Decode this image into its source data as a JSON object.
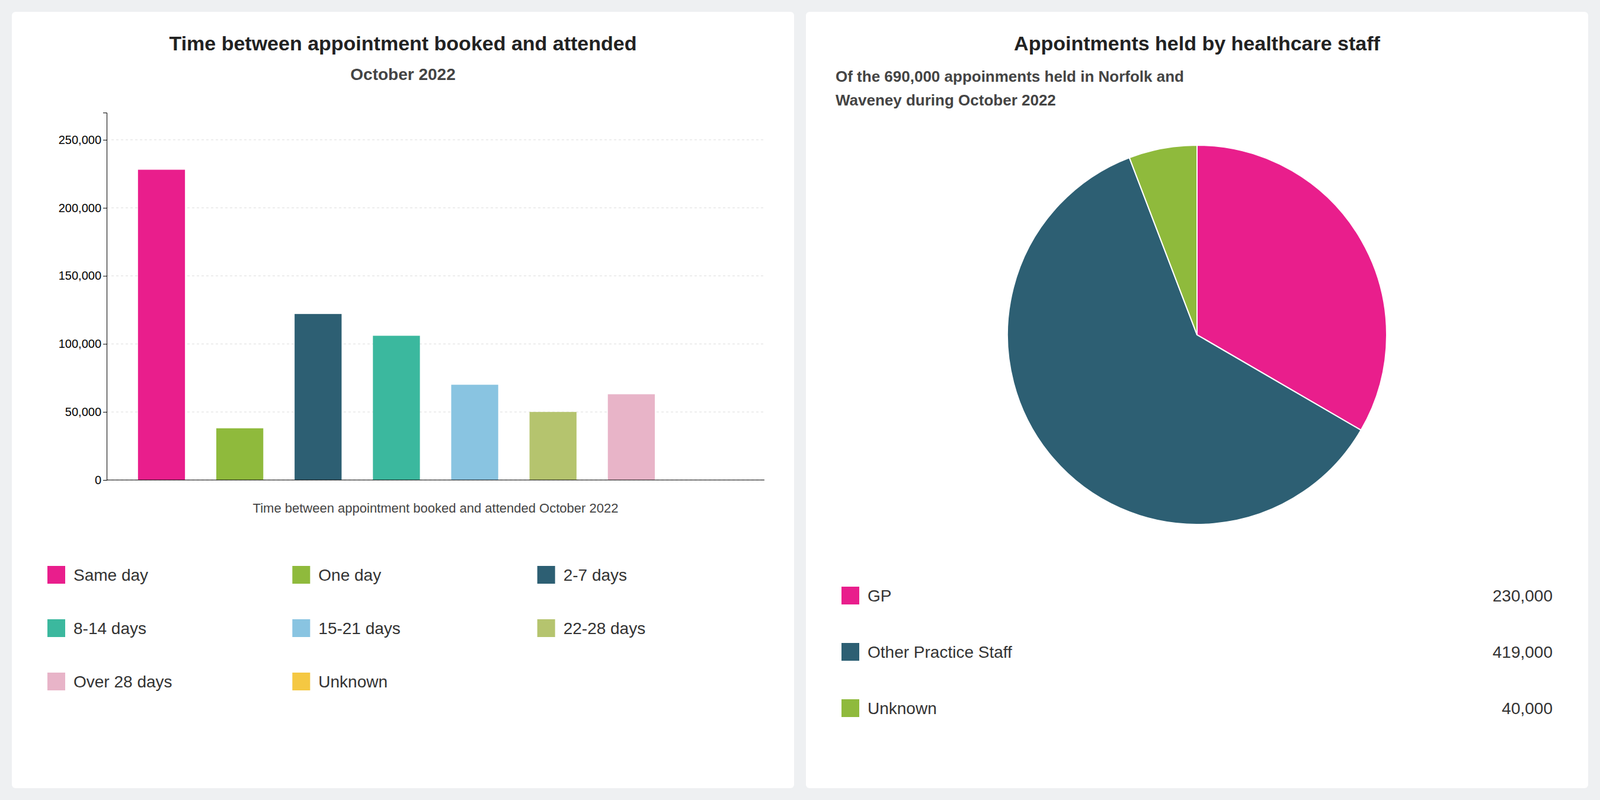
{
  "chart_data": [
    {
      "type": "bar",
      "title": "Time between appointment booked and attended",
      "subtitle": "October 2022",
      "xlabel": "Time between appointment booked and attended October 2022",
      "categories": [
        "Same day",
        "One day",
        "2-7 days",
        "8-14 days",
        "15-21 days",
        "22-28 days",
        "Over 28 days",
        "Unknown"
      ],
      "values": [
        228000,
        38000,
        122000,
        106000,
        70000,
        50000,
        63000,
        0
      ],
      "colors": [
        "#e91e8c",
        "#8fba3c",
        "#2d5f73",
        "#3bb89e",
        "#89c4e1",
        "#b5c46e",
        "#e8b4c8",
        "#f5c842"
      ],
      "ylim": [
        0,
        270000
      ],
      "yticks": [
        0,
        {
          "value": 50000,
          "label": "50,000"
        },
        {
          "value": 100000,
          "label": "100,000"
        },
        {
          "value": 150000,
          "label": "150,000"
        },
        {
          "value": 200000,
          "label": "200,000"
        },
        {
          "value": 250000,
          "label": "250,000"
        }
      ],
      "grid": true,
      "tick_labels": "y",
      "legend": "bottom"
    },
    {
      "type": "pie",
      "title": "Appointments held by healthcare staff",
      "subtitle": [
        "Of the 690,000 appoinments held in Norfolk and",
        "Waveney during October 2022"
      ],
      "categories": [
        "GP",
        "Other Practice Staff",
        "Unknown"
      ],
      "values": [
        230000,
        419000,
        40000
      ],
      "value_labels": [
        "230,000",
        "419,000",
        "40,000"
      ],
      "colors": [
        "#e91e8c",
        "#2d5f73",
        "#8fba3c"
      ],
      "legend": "bottom"
    }
  ]
}
